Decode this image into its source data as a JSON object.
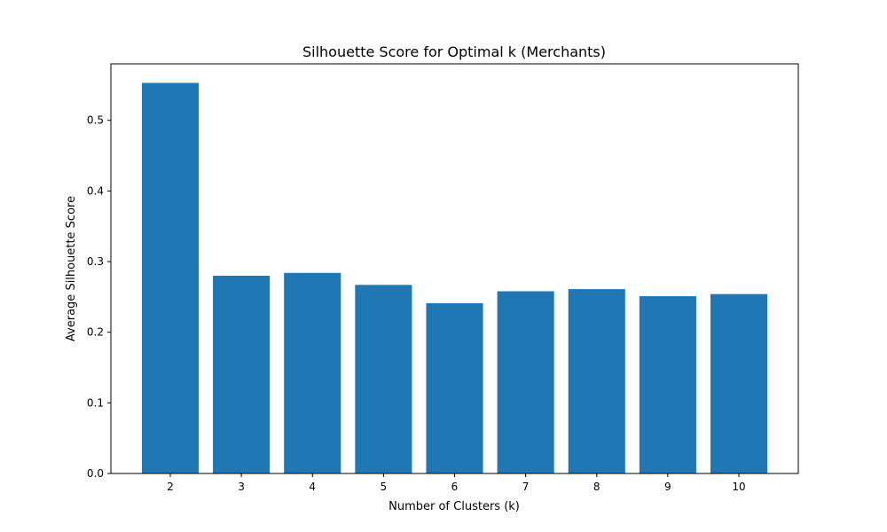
{
  "chart_data": {
    "type": "bar",
    "title": "Silhouette Score for Optimal k (Merchants)",
    "xlabel": "Number of Clusters (k)",
    "ylabel": "Average Silhouette Score",
    "categories": [
      "2",
      "3",
      "4",
      "5",
      "6",
      "7",
      "8",
      "9",
      "10"
    ],
    "values": [
      0.553,
      0.28,
      0.284,
      0.267,
      0.241,
      0.258,
      0.261,
      0.251,
      0.254
    ],
    "ylim": [
      0,
      0.58
    ],
    "yticks": [
      "0.0",
      "0.1",
      "0.2",
      "0.3",
      "0.4",
      "0.5"
    ],
    "bar_color": "#1f77b4",
    "grid": false
  }
}
